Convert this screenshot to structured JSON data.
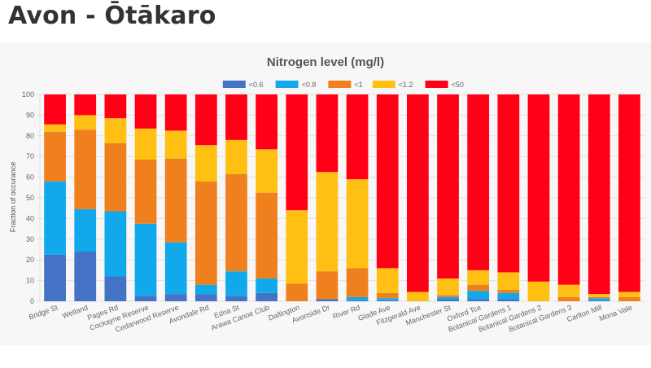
{
  "page": {
    "title": "Avon - Ōtākaro"
  },
  "chart_data": {
    "type": "bar",
    "stacked": true,
    "title": "Nitrogen level (mg/l)",
    "xlabel": "",
    "ylabel": "Fraction of occurance",
    "ylim": [
      0,
      100
    ],
    "yticks": [
      0,
      10,
      20,
      30,
      40,
      50,
      60,
      70,
      80,
      90,
      100
    ],
    "grid": true,
    "legend_position": "top",
    "categories": [
      "Bridge St",
      "Wetland",
      "Pages Rd",
      "Cockayne Reserve",
      "Cedarwood Reserve",
      "Avondale Rd",
      "Edna St",
      "Arawa Canoe Club",
      "Dallington",
      "Avonside Dr",
      "River Rd",
      "Glade Ave",
      "Fitzgerald Ave",
      "Manchester St",
      "Oxford Tce",
      "Botanical Gardens 1",
      "Botanical Gardens 2",
      "Botanical Gardens 3",
      "Carlton Mill",
      "Mona Vale"
    ],
    "series": [
      {
        "name": "<0.6",
        "color": "#4472c4",
        "values": [
          22.5,
          24,
          12,
          2.5,
          3.5,
          3.5,
          2.5,
          4,
          0,
          1,
          0.5,
          0.5,
          0,
          1,
          1,
          1,
          0,
          0,
          0.5,
          0
        ]
      },
      {
        "name": "<0.8",
        "color": "#12a8ec",
        "values": [
          35.5,
          20.5,
          31.5,
          35,
          25,
          4.5,
          12,
          7,
          0,
          0,
          1.5,
          1,
          0,
          1,
          4,
          3,
          0,
          0,
          1,
          0
        ]
      },
      {
        "name": "<1",
        "color": "#f0801e",
        "values": [
          24,
          38.5,
          33,
          31,
          40.5,
          50,
          47,
          41.5,
          8.5,
          13.5,
          14,
          2.5,
          0,
          1,
          3,
          1.5,
          0,
          2,
          0.5,
          2
        ]
      },
      {
        "name": "<1.2",
        "color": "#ffc013",
        "values": [
          3.5,
          7,
          12,
          15,
          13.5,
          17.5,
          16.5,
          21,
          35.5,
          48,
          43,
          12,
          4.5,
          8,
          7,
          8.5,
          9.5,
          6,
          1.5,
          2.5
        ]
      },
      {
        "name": "<50",
        "color": "#ff0016",
        "values": [
          14.5,
          10,
          11.5,
          16.5,
          17.5,
          24.5,
          22,
          26.5,
          56,
          37.5,
          41,
          84,
          95.5,
          89,
          85,
          86,
          90.5,
          92,
          96.5,
          95.5
        ]
      }
    ]
  }
}
